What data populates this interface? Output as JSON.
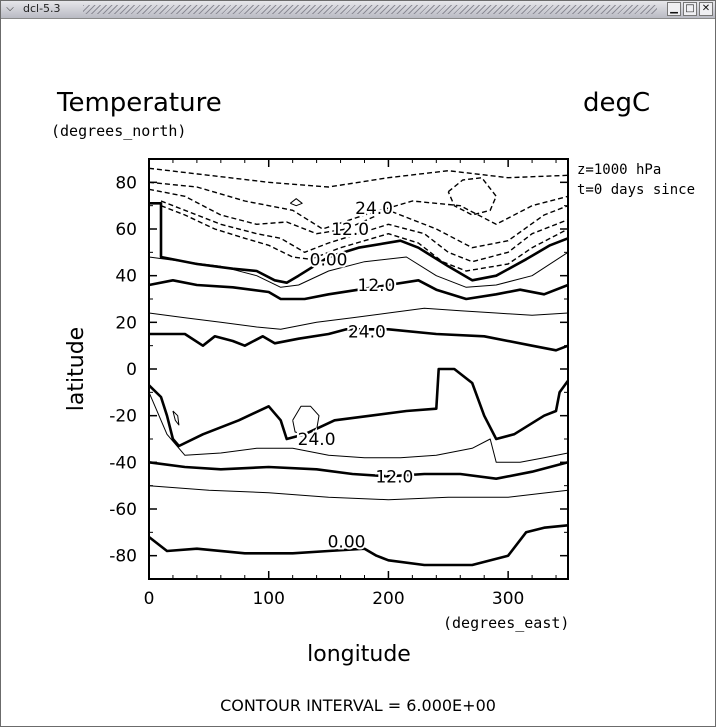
{
  "window": {
    "title": "dcl-5.3",
    "menu_icon": "chevron-down-icon",
    "minimize_icon": "minimize-icon",
    "maximize_icon": "maximize-icon",
    "close_icon": "close-icon"
  },
  "chart_data": {
    "type": "contour",
    "title": "Temperature",
    "units": "degC",
    "subtitle_left": "(degrees_north)",
    "info_lines": [
      "z=1000 hPa",
      "t=0 days since"
    ],
    "xlabel": "longitude",
    "xunits": "(degrees_east)",
    "ylabel": "latitude",
    "xlim": [
      0,
      350
    ],
    "ylim": [
      -90,
      90
    ],
    "x_ticks": [
      0,
      100,
      200,
      300
    ],
    "x_tick_labels": [
      "0",
      "100",
      "200",
      "300"
    ],
    "y_ticks": [
      80,
      60,
      40,
      20,
      0,
      -20,
      -40,
      -60,
      -80
    ],
    "y_tick_labels": [
      "80",
      "60",
      "40",
      "20",
      "0",
      "-20",
      "-40",
      "-60",
      "-80"
    ],
    "contour_interval_text": "CONTOUR INTERVAL = 6.000E+00",
    "contour_interval": 6.0,
    "contour_labels": [
      {
        "text": "24.0",
        "x": 188,
        "y": 69
      },
      {
        "text": "12.0",
        "x": 168,
        "y": 60
      },
      {
        "text": "0.00",
        "x": 150,
        "y": 47
      },
      {
        "text": "12.0",
        "x": 190,
        "y": 36
      },
      {
        "text": "24.0",
        "x": 182,
        "y": 16
      },
      {
        "text": "24.0",
        "x": 140,
        "y": -30
      },
      {
        "text": "12.0",
        "x": 205,
        "y": -46
      },
      {
        "text": "0.00",
        "x": 165,
        "y": -74
      }
    ],
    "series": [
      {
        "level": -18,
        "style": "dashed",
        "points": [
          [
            0,
            86
          ],
          [
            50,
            83
          ],
          [
            100,
            80
          ],
          [
            150,
            78
          ],
          [
            200,
            82
          ],
          [
            250,
            85
          ],
          [
            300,
            82
          ],
          [
            350,
            83
          ]
        ]
      },
      {
        "level": -12,
        "style": "dashed",
        "points": [
          [
            0,
            80
          ],
          [
            40,
            78
          ],
          [
            80,
            72
          ],
          [
            120,
            68
          ],
          [
            145,
            60
          ],
          [
            180,
            66
          ],
          [
            220,
            72
          ],
          [
            260,
            70
          ],
          [
            290,
            62
          ],
          [
            320,
            70
          ],
          [
            350,
            74
          ]
        ]
      },
      {
        "level": -6,
        "style": "dashed",
        "points": [
          [
            0,
            77
          ],
          [
            30,
            74
          ],
          [
            60,
            66
          ],
          [
            90,
            62
          ],
          [
            115,
            63
          ],
          [
            140,
            58
          ],
          [
            165,
            60
          ],
          [
            200,
            68
          ],
          [
            240,
            60
          ],
          [
            270,
            52
          ],
          [
            300,
            55
          ],
          [
            330,
            66
          ],
          [
            350,
            70
          ]
        ]
      },
      {
        "level": -6,
        "style": "dashed",
        "points": [
          [
            250,
            76
          ],
          [
            262,
            81
          ],
          [
            278,
            82
          ],
          [
            290,
            74
          ],
          [
            285,
            68
          ],
          [
            270,
            66
          ],
          [
            255,
            70
          ],
          [
            250,
            76
          ]
        ]
      },
      {
        "level": -6,
        "style": "solid-thin",
        "points": [
          [
            118,
            71
          ],
          [
            123,
            73
          ],
          [
            128,
            71
          ],
          [
            123,
            70
          ],
          [
            118,
            71
          ]
        ]
      },
      {
        "level": 0,
        "style": "dashed",
        "points": [
          [
            10,
            72
          ],
          [
            30,
            68
          ],
          [
            60,
            62
          ],
          [
            90,
            58
          ],
          [
            110,
            56
          ],
          [
            130,
            50
          ],
          [
            150,
            54
          ],
          [
            175,
            58
          ],
          [
            200,
            62
          ],
          [
            230,
            58
          ],
          [
            250,
            50
          ],
          [
            270,
            46
          ],
          [
            300,
            50
          ],
          [
            320,
            58
          ],
          [
            350,
            64
          ]
        ]
      },
      {
        "level": -6,
        "style": "dashed",
        "points": [
          [
            10,
            70
          ],
          [
            30,
            66
          ],
          [
            55,
            60
          ],
          [
            80,
            56
          ],
          [
            100,
            53
          ],
          [
            120,
            48
          ],
          [
            135,
            47
          ],
          [
            160,
            52
          ],
          [
            180,
            55
          ],
          [
            200,
            58
          ],
          [
            225,
            54
          ],
          [
            245,
            46
          ],
          [
            265,
            42
          ],
          [
            300,
            45
          ],
          [
            320,
            52
          ],
          [
            350,
            60
          ]
        ]
      },
      {
        "level": 0,
        "style": "thick",
        "points": [
          [
            0,
            71
          ],
          [
            10,
            71
          ],
          [
            10,
            48
          ],
          [
            40,
            45
          ],
          [
            70,
            43
          ],
          [
            90,
            42
          ],
          [
            105,
            38
          ],
          [
            115,
            37
          ],
          [
            125,
            40
          ],
          [
            150,
            48
          ],
          [
            175,
            52
          ],
          [
            210,
            55
          ],
          [
            225,
            52
          ],
          [
            250,
            44
          ],
          [
            270,
            38
          ],
          [
            290,
            40
          ],
          [
            315,
            47
          ],
          [
            335,
            53
          ],
          [
            350,
            56
          ]
        ]
      },
      {
        "level": 6,
        "style": "thin",
        "points": [
          [
            0,
            48
          ],
          [
            30,
            46
          ],
          [
            60,
            44
          ],
          [
            90,
            40
          ],
          [
            110,
            35
          ],
          [
            125,
            36
          ],
          [
            150,
            42
          ],
          [
            180,
            46
          ],
          [
            215,
            48
          ],
          [
            240,
            40
          ],
          [
            265,
            35
          ],
          [
            290,
            36
          ],
          [
            320,
            40
          ],
          [
            350,
            50
          ]
        ]
      },
      {
        "level": 12,
        "style": "thick",
        "points": [
          [
            0,
            36
          ],
          [
            20,
            38
          ],
          [
            40,
            36
          ],
          [
            70,
            35
          ],
          [
            100,
            33
          ],
          [
            110,
            30
          ],
          [
            130,
            30
          ],
          [
            150,
            32
          ],
          [
            175,
            34
          ],
          [
            200,
            36
          ],
          [
            225,
            38
          ],
          [
            240,
            34
          ],
          [
            265,
            30
          ],
          [
            290,
            32
          ],
          [
            310,
            34
          ],
          [
            330,
            32
          ],
          [
            350,
            36
          ]
        ]
      },
      {
        "level": 18,
        "style": "thin",
        "points": [
          [
            0,
            24
          ],
          [
            30,
            22
          ],
          [
            60,
            20
          ],
          [
            90,
            18
          ],
          [
            110,
            17
          ],
          [
            140,
            20
          ],
          [
            170,
            22
          ],
          [
            200,
            24
          ],
          [
            230,
            26
          ],
          [
            260,
            25
          ],
          [
            290,
            24
          ],
          [
            320,
            23
          ],
          [
            350,
            24
          ]
        ]
      },
      {
        "level": 24,
        "style": "thick",
        "points": [
          [
            0,
            15
          ],
          [
            30,
            15
          ],
          [
            45,
            10
          ],
          [
            55,
            14
          ],
          [
            70,
            12
          ],
          [
            80,
            10
          ],
          [
            95,
            14
          ],
          [
            105,
            11
          ],
          [
            125,
            13
          ],
          [
            150,
            15
          ],
          [
            165,
            17
          ],
          [
            200,
            17
          ],
          [
            240,
            15
          ],
          [
            280,
            14
          ],
          [
            320,
            10
          ],
          [
            340,
            8
          ],
          [
            350,
            10
          ]
        ]
      },
      {
        "level": 24,
        "style": "thick",
        "points": [
          [
            0,
            -7
          ],
          [
            10,
            -12
          ],
          [
            15,
            -20
          ],
          [
            20,
            -30
          ],
          [
            25,
            -33
          ],
          [
            45,
            -28
          ],
          [
            75,
            -22
          ],
          [
            100,
            -16
          ],
          [
            110,
            -22
          ],
          [
            115,
            -30
          ],
          [
            130,
            -28
          ],
          [
            155,
            -22
          ],
          [
            185,
            -20
          ],
          [
            215,
            -18
          ],
          [
            240,
            -17
          ],
          [
            242,
            0
          ],
          [
            255,
            0
          ],
          [
            270,
            -6
          ],
          [
            280,
            -20
          ],
          [
            290,
            -30
          ],
          [
            305,
            -28
          ],
          [
            330,
            -20
          ],
          [
            340,
            -18
          ],
          [
            343,
            -10
          ],
          [
            350,
            -5
          ]
        ]
      },
      {
        "level": 24,
        "style": "thin",
        "points": [
          [
            120,
            -22
          ],
          [
            127,
            -16
          ],
          [
            135,
            -16
          ],
          [
            142,
            -20
          ],
          [
            140,
            -26
          ],
          [
            130,
            -28
          ],
          [
            122,
            -27
          ],
          [
            120,
            -22
          ]
        ]
      },
      {
        "level": 24,
        "style": "thin",
        "points": [
          [
            20,
            -18
          ],
          [
            24,
            -20
          ],
          [
            25,
            -24
          ],
          [
            22,
            -22
          ],
          [
            20,
            -18
          ]
        ]
      },
      {
        "level": 18,
        "style": "thin",
        "points": [
          [
            0,
            -10
          ],
          [
            15,
            -28
          ],
          [
            30,
            -37
          ],
          [
            60,
            -36
          ],
          [
            90,
            -34
          ],
          [
            120,
            -34
          ],
          [
            150,
            -37
          ],
          [
            180,
            -38
          ],
          [
            210,
            -38
          ],
          [
            240,
            -37
          ],
          [
            270,
            -34
          ],
          [
            285,
            -30
          ],
          [
            290,
            -40
          ],
          [
            310,
            -40
          ],
          [
            330,
            -38
          ],
          [
            350,
            -36
          ]
        ]
      },
      {
        "level": 12,
        "style": "thick",
        "points": [
          [
            0,
            -40
          ],
          [
            30,
            -42
          ],
          [
            60,
            -43
          ],
          [
            100,
            -42
          ],
          [
            140,
            -43
          ],
          [
            170,
            -45
          ],
          [
            200,
            -46
          ],
          [
            230,
            -45
          ],
          [
            260,
            -45
          ],
          [
            290,
            -47
          ],
          [
            320,
            -44
          ],
          [
            350,
            -40
          ]
        ]
      },
      {
        "level": 6,
        "style": "thin",
        "points": [
          [
            0,
            -50
          ],
          [
            50,
            -52
          ],
          [
            100,
            -53
          ],
          [
            150,
            -55
          ],
          [
            200,
            -56
          ],
          [
            250,
            -55
          ],
          [
            300,
            -55
          ],
          [
            350,
            -52
          ]
        ]
      },
      {
        "level": 0,
        "style": "thick",
        "points": [
          [
            0,
            -72
          ],
          [
            15,
            -78
          ],
          [
            40,
            -77
          ],
          [
            80,
            -79
          ],
          [
            120,
            -79
          ],
          [
            150,
            -78
          ],
          [
            180,
            -77
          ],
          [
            190,
            -80
          ],
          [
            200,
            -82
          ],
          [
            230,
            -84
          ],
          [
            270,
            -84
          ],
          [
            300,
            -80
          ],
          [
            315,
            -70
          ],
          [
            330,
            -68
          ],
          [
            350,
            -67
          ]
        ]
      }
    ]
  }
}
